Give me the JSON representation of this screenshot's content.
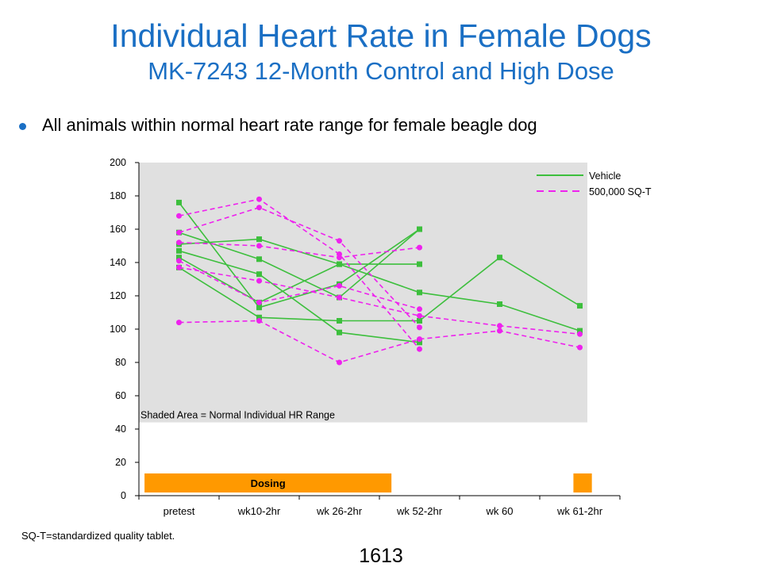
{
  "title": "Individual Heart Rate in Female Dogs",
  "subtitle": "MK-7243 12-Month Control and High Dose",
  "bullet": "All animals within normal heart rate range for female beagle dog",
  "footnote": "SQ-T=standardized quality tablet.",
  "page_number": "1613",
  "chart_data": {
    "type": "line",
    "categories": [
      "pretest",
      "wk10-2hr",
      "wk 26-2hr",
      "wk 52-2hr",
      "wk 60",
      "wk 61-2hr"
    ],
    "ylim": [
      0,
      200
    ],
    "yticks": [
      0,
      20,
      40,
      60,
      80,
      100,
      120,
      140,
      160,
      180,
      200
    ],
    "normal_range": {
      "from": 44,
      "to": 200,
      "label": "Shaded Area = Normal Individual  HR Range",
      "color": "#e0e0e0"
    },
    "dosing_bars": [
      {
        "from": 0.07,
        "to": 3.15,
        "label": "Dosing"
      },
      {
        "from": 5.42,
        "to": 5.65,
        "label": ""
      }
    ],
    "legend": {
      "position": "top-right"
    },
    "series_groups": [
      {
        "name": "Vehicle",
        "color": "#3dbf3d",
        "style": "solid",
        "marker": "square",
        "animals": [
          [
            176,
            113,
            127,
            160,
            null,
            null
          ],
          [
            158,
            142,
            119,
            160,
            null,
            null
          ],
          [
            151,
            154,
            139,
            139,
            null,
            null
          ],
          [
            147,
            133,
            98,
            92,
            null,
            null
          ],
          [
            143,
            116,
            139,
            122,
            115,
            99
          ],
          [
            137,
            107,
            105,
            105,
            143,
            114
          ]
        ]
      },
      {
        "name": "500,000 SQ-T",
        "color": "#ee22ee",
        "style": "dashed",
        "marker": "circle",
        "animals": [
          [
            168,
            178,
            145,
            88,
            null,
            null
          ],
          [
            158,
            173,
            153,
            101,
            null,
            null
          ],
          [
            152,
            150,
            143,
            149,
            null,
            null
          ],
          [
            141,
            116,
            126,
            112,
            null,
            null
          ],
          [
            137,
            129,
            119,
            108,
            102,
            97
          ],
          [
            104,
            105,
            80,
            94,
            99,
            89
          ]
        ]
      }
    ]
  }
}
